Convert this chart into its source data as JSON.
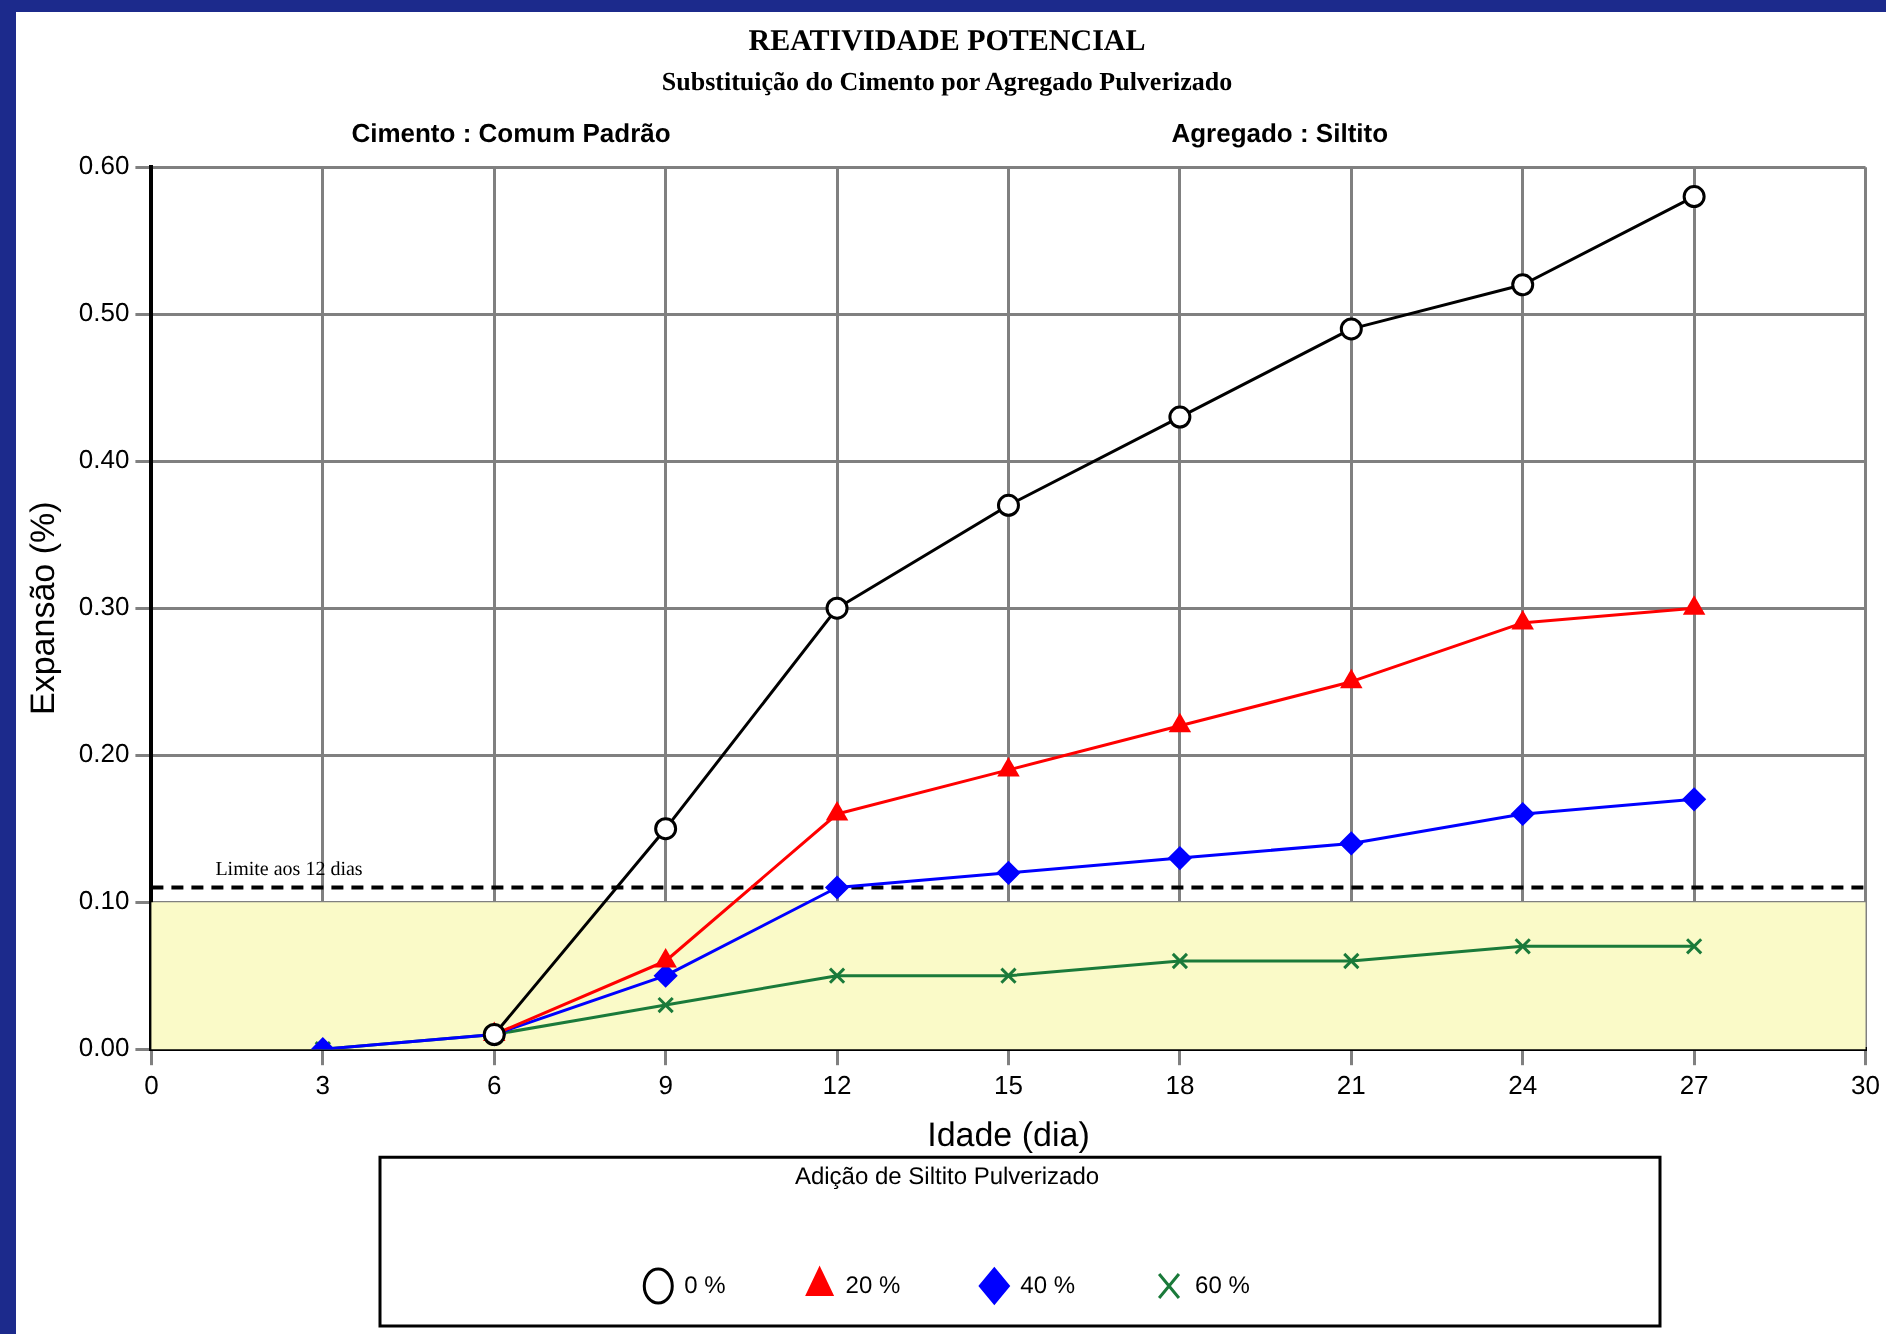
{
  "chart_data": {
    "type": "line",
    "title": "REATIVIDADE POTENCIAL",
    "subtitle": "Substituição do Cimento por Agregado Pulverizado",
    "annotations": [
      "Cimento : Comum Padrão",
      "Agregado : Siltito"
    ],
    "xlabel": "Idade (dia)",
    "ylabel": "Expansão (%)",
    "legend_title": "Adição de Siltito Pulverizado",
    "x": [
      3,
      6,
      9,
      12,
      15,
      18,
      21,
      24,
      27
    ],
    "series": [
      {
        "name": "0 %",
        "color": "#000000",
        "marker": "circle",
        "values": [
          null,
          0.01,
          0.15,
          0.3,
          0.37,
          0.43,
          0.49,
          0.52,
          0.58
        ]
      },
      {
        "name": "20 %",
        "color": "#ff0000",
        "marker": "triangle",
        "values": [
          null,
          0.01,
          0.06,
          0.16,
          0.19,
          0.22,
          0.25,
          0.29,
          0.3
        ]
      },
      {
        "name": "40 %",
        "color": "#0000ff",
        "marker": "diamond",
        "values": [
          0,
          0.01,
          0.05,
          0.11,
          0.12,
          0.13,
          0.14,
          0.16,
          0.17
        ]
      },
      {
        "name": "60 %",
        "color": "#1a7a3a",
        "marker": "cross",
        "values": [
          0,
          0.01,
          0.03,
          0.05,
          0.05,
          0.06,
          0.06,
          0.07,
          0.07
        ]
      }
    ],
    "xlim": [
      0,
      30
    ],
    "xticks": [
      0,
      3,
      6,
      9,
      12,
      15,
      18,
      21,
      24,
      27,
      30
    ],
    "ylim": [
      0,
      0.6
    ],
    "yticks": [
      {
        "value": 0,
        "label": "0.00"
      },
      {
        "value": 0.1,
        "label": "0.10"
      },
      {
        "value": 0.2,
        "label": "0.20"
      },
      {
        "value": 0.3,
        "label": "0.30"
      },
      {
        "value": 0.4,
        "label": "0.40"
      },
      {
        "value": 0.5,
        "label": "0.50"
      },
      {
        "value": 0.6,
        "label": "0.60"
      }
    ],
    "ref_lines": [
      {
        "axis": "y",
        "value": 0.11,
        "label": "Limite aos 12 dias",
        "color": "#000000",
        "line_style": "dashed"
      }
    ],
    "bands": [
      {
        "axis": "y",
        "from": 0,
        "to": 0.1,
        "color": "#fafac8"
      }
    ],
    "grid": true,
    "legend": "bottom",
    "line_style": "solid"
  }
}
